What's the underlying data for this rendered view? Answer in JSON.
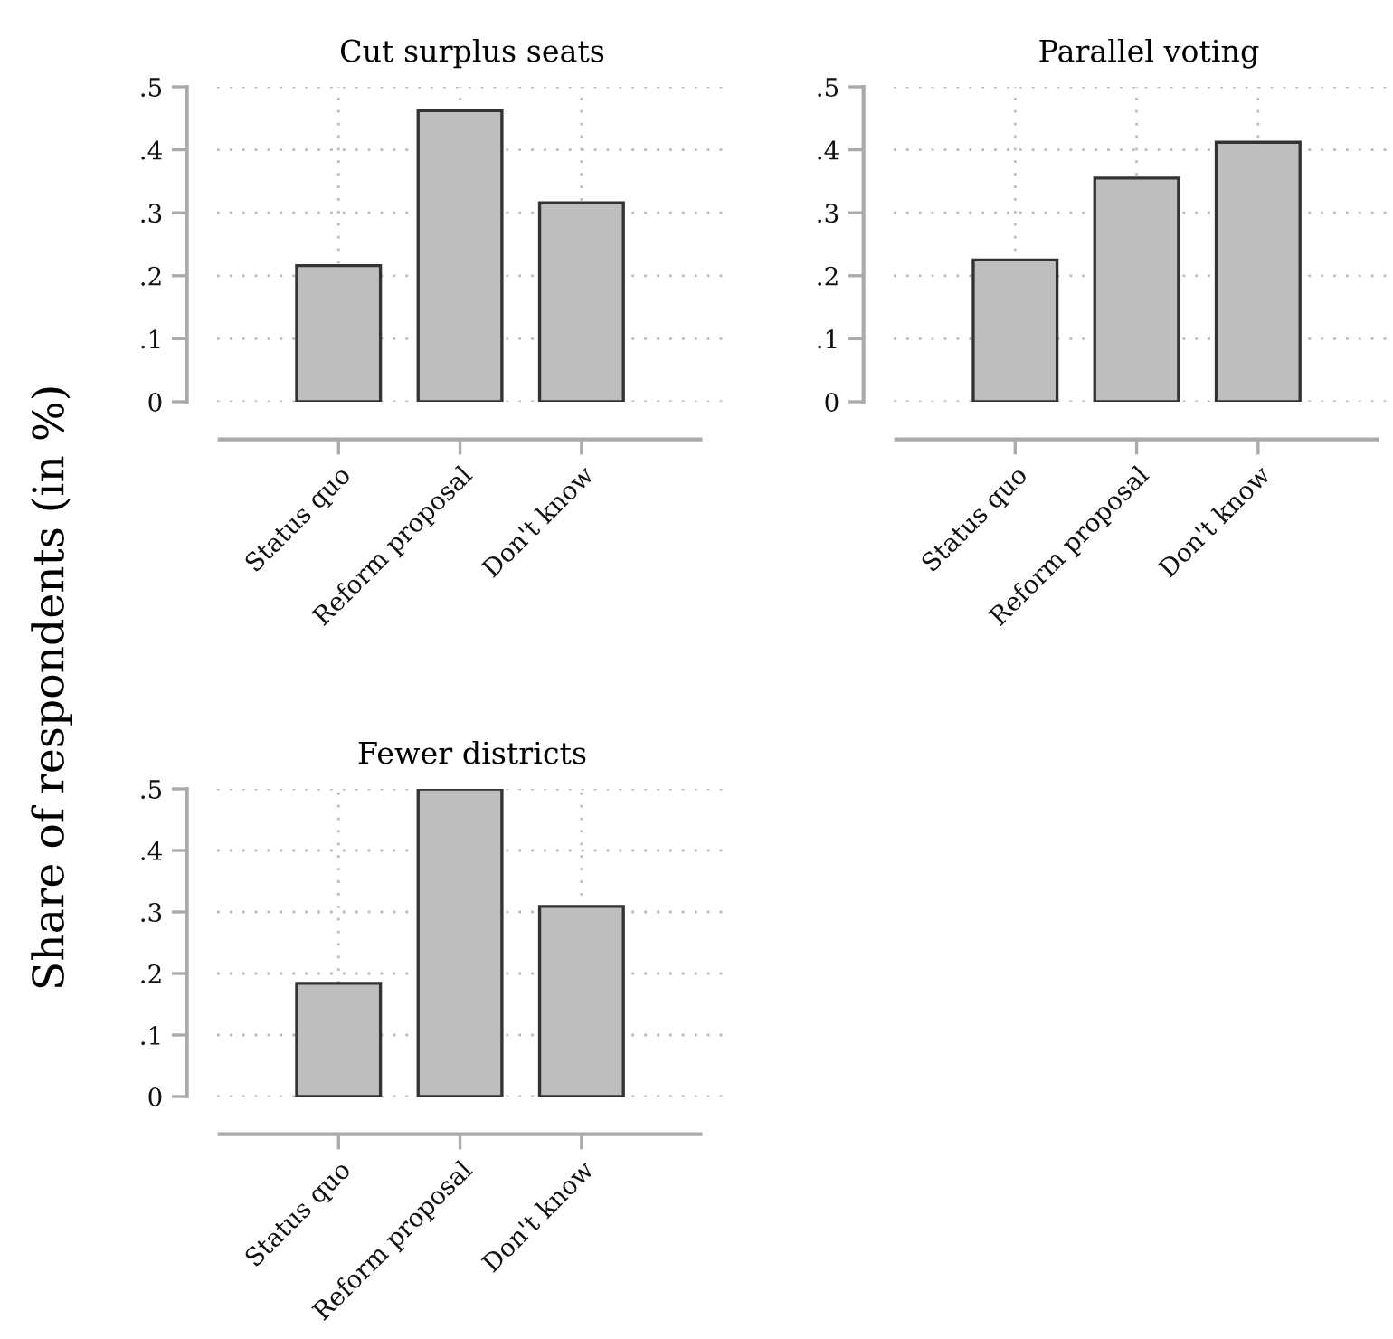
{
  "chart_data": [
    {
      "type": "bar",
      "title": "Cut surplus seats",
      "ylabel": "Share of respondents (in %)",
      "categories": [
        "Status quo",
        "Reform proposal",
        "Don't know"
      ],
      "values": [
        0.216,
        0.462,
        0.316
      ],
      "color": "#bebebe",
      "ylim": [
        0,
        0.5
      ],
      "yticks": [
        {
          "value": 0,
          "label": "0"
        },
        {
          "value": 0.1,
          "label": ".1"
        },
        {
          "value": 0.2,
          "label": ".2"
        },
        {
          "value": 0.3,
          "label": ".3"
        },
        {
          "value": 0.4,
          "label": ".4"
        },
        {
          "value": 0.5,
          "label": ".5"
        }
      ],
      "grid": true
    },
    {
      "type": "bar",
      "title": "Parallel voting",
      "categories": [
        "Status quo",
        "Reform proposal",
        "Don't know"
      ],
      "values": [
        0.225,
        0.355,
        0.412
      ],
      "color": "#bebebe",
      "ylim": [
        0,
        0.5
      ],
      "yticks": [
        {
          "value": 0,
          "label": "0"
        },
        {
          "value": 0.1,
          "label": ".1"
        },
        {
          "value": 0.2,
          "label": ".2"
        },
        {
          "value": 0.3,
          "label": ".3"
        },
        {
          "value": 0.4,
          "label": ".4"
        },
        {
          "value": 0.5,
          "label": ".5"
        }
      ],
      "grid": true
    },
    {
      "type": "bar",
      "title": "Fewer districts",
      "categories": [
        "Status quo",
        "Reform proposal",
        "Don't know"
      ],
      "values": [
        0.184,
        0.5,
        0.309
      ],
      "color": "#bebebe",
      "ylim": [
        0,
        0.5
      ],
      "yticks": [
        {
          "value": 0,
          "label": "0"
        },
        {
          "value": 0.1,
          "label": ".1"
        },
        {
          "value": 0.2,
          "label": ".2"
        },
        {
          "value": 0.3,
          "label": ".3"
        },
        {
          "value": 0.4,
          "label": ".4"
        },
        {
          "value": 0.5,
          "label": ".5"
        }
      ],
      "grid": true
    }
  ]
}
